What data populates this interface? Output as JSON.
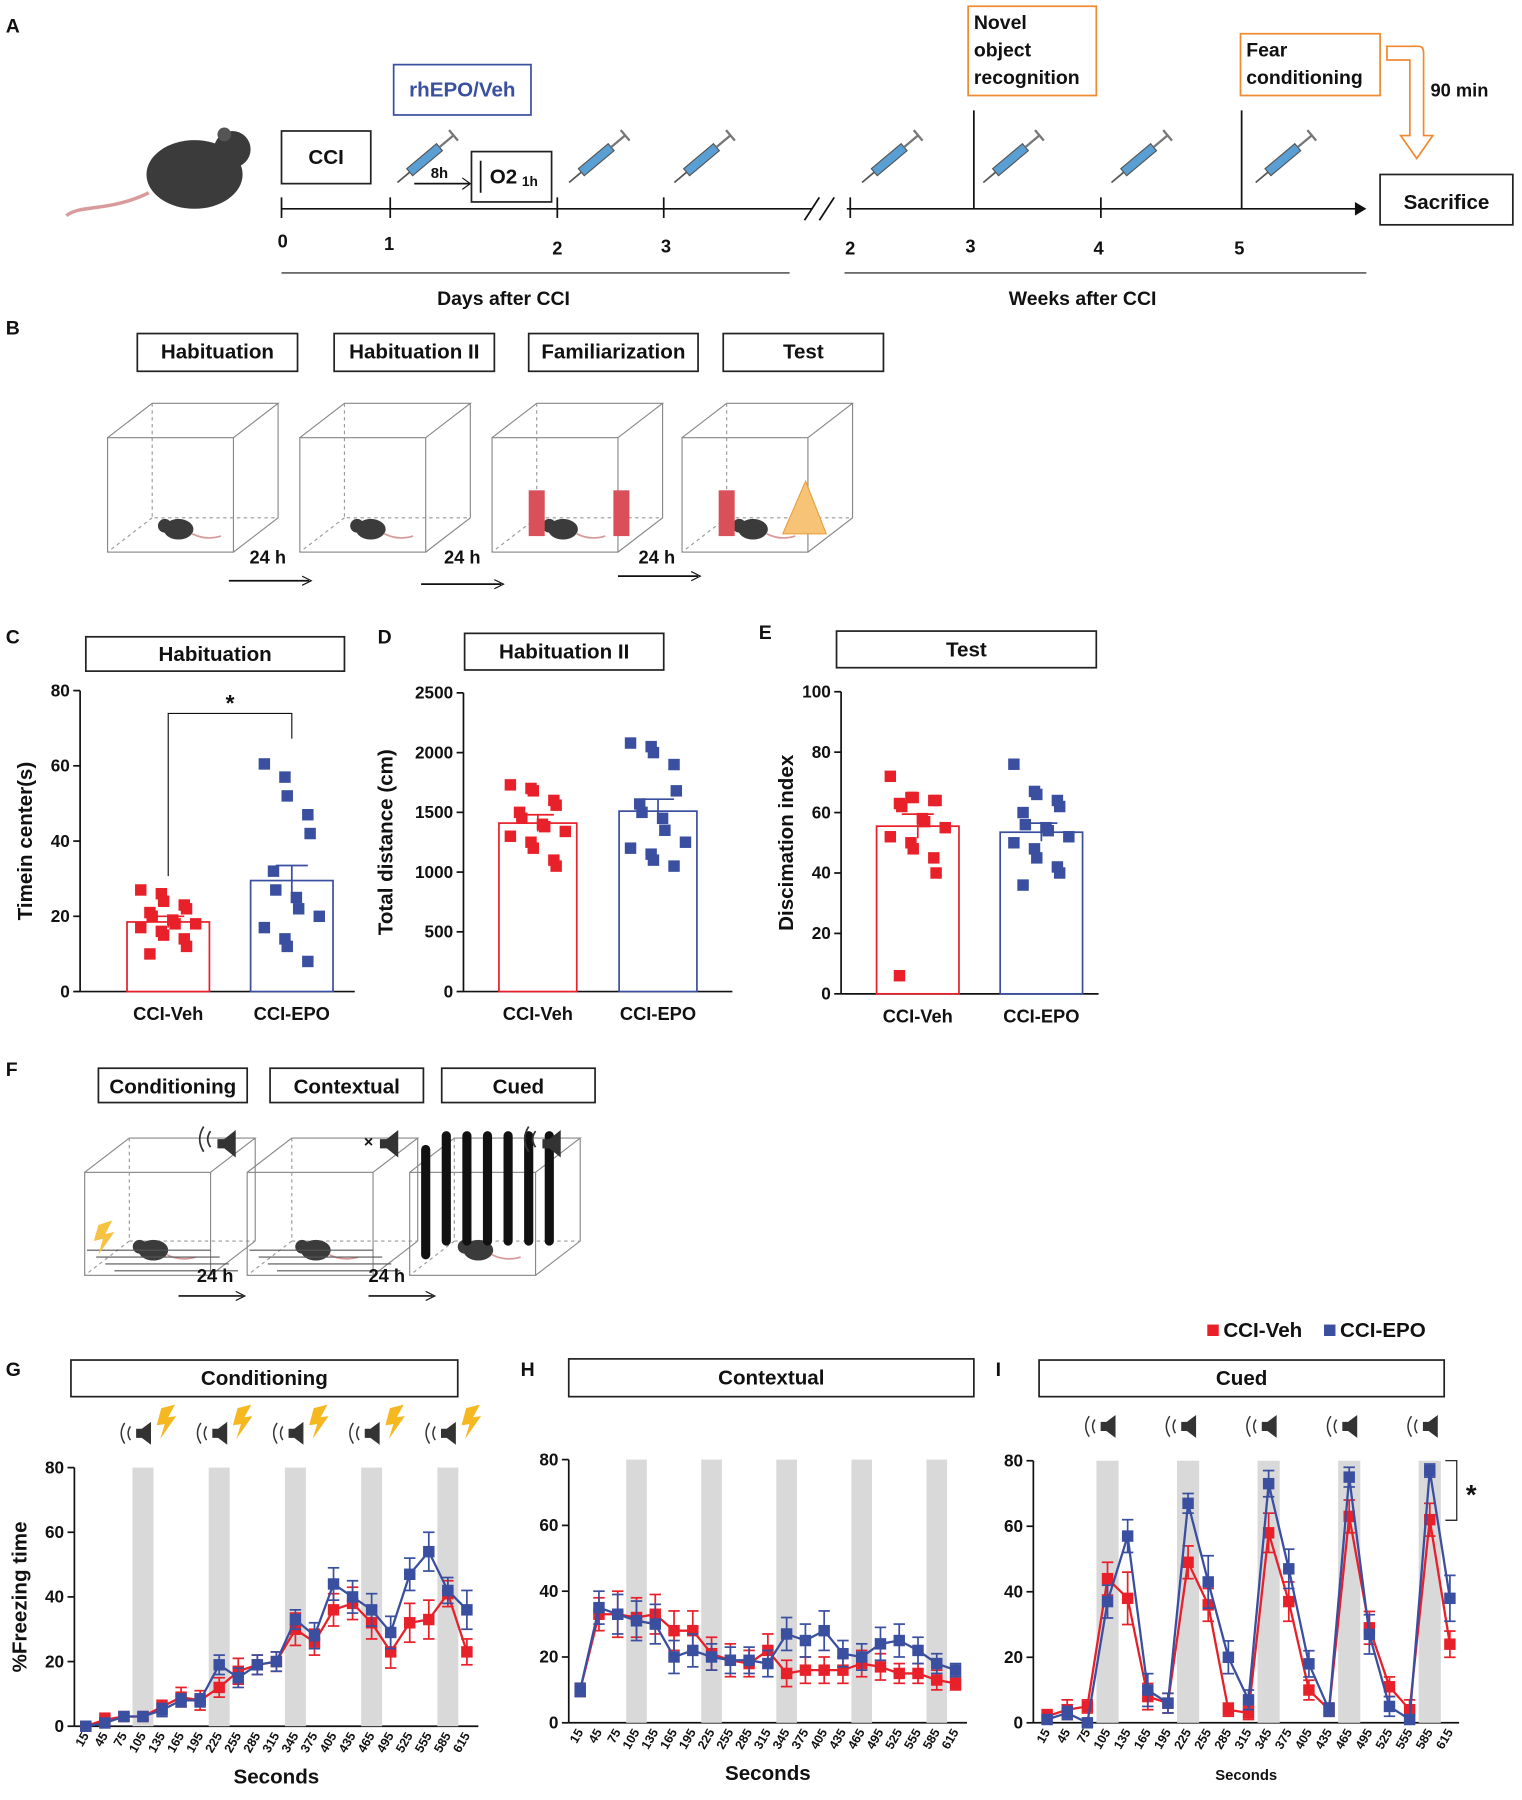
{
  "diagram": {
    "letters": [
      "A",
      "B",
      "C",
      "D",
      "E",
      "F",
      "G",
      "H",
      "I"
    ],
    "a": {
      "cci": "CCI",
      "treatment": "rhEPO/Veh",
      "interval": "8h",
      "o2": "O2",
      "o2_time": "1h",
      "nor": [
        "Novel",
        "object",
        "recognition"
      ],
      "fear": [
        "Fear",
        "conditioning"
      ],
      "delay": "90 min",
      "end": "Sacrifice",
      "day_ticks": [
        "0",
        "1",
        "2",
        "3"
      ],
      "week_ticks": [
        "2",
        "3",
        "4",
        "5"
      ],
      "days_label": "Days after CCI",
      "weeks_label": "Weeks after CCI"
    },
    "b": {
      "stages": [
        "Habituation",
        "Habituation II",
        "Familiarization",
        "Test"
      ],
      "gaps": [
        "24 h",
        "24 h",
        "24 h"
      ]
    },
    "f": {
      "stages": [
        "Conditioning",
        "Contextual",
        "Cued"
      ],
      "gaps": [
        "24 h",
        "24 h"
      ]
    }
  },
  "chart_data": [
    {
      "type": "bar",
      "title": "Habituation",
      "ylabel": "Timein center(s)",
      "categories": [
        "CCI-Veh",
        "CCI-EPO"
      ],
      "values": [
        18.5,
        29.5
      ],
      "errors": [
        1.5,
        4
      ],
      "colors": [
        "#e8202a",
        "#3a4fa0"
      ],
      "points": [
        [
          27,
          26,
          24,
          23,
          22,
          21,
          20,
          19,
          18,
          18,
          17,
          16,
          15,
          14,
          12,
          10
        ],
        [
          60.5,
          57,
          52,
          47,
          42,
          32,
          27,
          25,
          22,
          20,
          17,
          14,
          12,
          8
        ]
      ],
      "ylim": [
        0,
        80
      ],
      "yticks": [
        0,
        20,
        40,
        60,
        80
      ],
      "annotations": [
        "*"
      ]
    },
    {
      "type": "bar",
      "title": "Habituation II",
      "ylabel": "Total distance (cm)",
      "categories": [
        "CCI-Veh",
        "CCI-EPO"
      ],
      "values": [
        1410,
        1510
      ],
      "errors": [
        70,
        100
      ],
      "colors": [
        "#e8202a",
        "#3a4fa0"
      ],
      "points": [
        [
          1730,
          1700,
          1680,
          1600,
          1560,
          1500,
          1450,
          1400,
          1380,
          1340,
          1300,
          1250,
          1200,
          1100,
          1050
        ],
        [
          2080,
          2050,
          2000,
          1900,
          1680,
          1570,
          1500,
          1450,
          1350,
          1250,
          1200,
          1150,
          1100,
          1050
        ]
      ],
      "ylim": [
        0,
        2500
      ],
      "yticks": [
        0,
        500,
        1000,
        1500,
        2000,
        2500
      ]
    },
    {
      "type": "bar",
      "title": "Test",
      "ylabel": "Discimation index",
      "categories": [
        "CCI-Veh",
        "CCI-EPO"
      ],
      "values": [
        55.5,
        53.5
      ],
      "errors": [
        4,
        3
      ],
      "colors": [
        "#e8202a",
        "#3a4fa0"
      ],
      "points": [
        [
          72,
          65,
          65,
          64,
          64,
          63,
          62,
          58,
          57,
          55,
          52,
          50,
          48,
          45,
          40,
          6
        ],
        [
          76,
          67,
          66,
          64,
          62,
          60,
          56,
          55,
          54,
          52,
          50,
          48,
          45,
          42,
          40,
          36
        ]
      ],
      "ylim": [
        0,
        100
      ],
      "yticks": [
        0,
        20,
        40,
        60,
        80,
        100
      ]
    },
    {
      "type": "line",
      "title": "Conditioning",
      "xlabel": "Seconds",
      "ylabel": "%Freezing time",
      "categories": [
        "15",
        "45",
        "75",
        "105",
        "135",
        "165",
        "195",
        "225",
        "255",
        "285",
        "315",
        "345",
        "375",
        "405",
        "435",
        "465",
        "495",
        "525",
        "555",
        "585",
        "615"
      ],
      "series": [
        {
          "name": "CCI-Veh",
          "color": "#e8202a",
          "values": [
            0,
            2,
            3,
            3,
            6,
            9,
            8,
            12,
            17,
            19,
            20,
            30,
            26,
            36,
            38,
            32,
            23,
            32,
            33,
            41,
            23
          ],
          "errors": [
            1,
            2,
            1,
            1,
            2,
            3,
            3,
            3,
            4,
            3,
            3,
            5,
            4,
            5,
            5,
            5,
            5,
            6,
            6,
            4,
            4
          ]
        },
        {
          "name": "CCI-EPO",
          "color": "#3a4fa0",
          "values": [
            0,
            1,
            3,
            3,
            5,
            8,
            8,
            19,
            15,
            19,
            20,
            33,
            28,
            44,
            40,
            36,
            29,
            47,
            54,
            42,
            36
          ],
          "errors": [
            1,
            1,
            1,
            1,
            2,
            2,
            2,
            3,
            3,
            3,
            3,
            3,
            4,
            5,
            5,
            5,
            5,
            5,
            6,
            4,
            6
          ]
        }
      ],
      "ylim": [
        0,
        80
      ],
      "yticks": [
        0,
        20,
        40,
        60,
        80
      ]
    },
    {
      "type": "line",
      "title": "Contextual",
      "xlabel": "Seconds",
      "categories": [
        "15",
        "45",
        "75",
        "105",
        "135",
        "165",
        "195",
        "225",
        "255",
        "285",
        "315",
        "345",
        "375",
        "405",
        "435",
        "465",
        "495",
        "525",
        "555",
        "585",
        "615"
      ],
      "series": [
        {
          "name": "CCI-Veh",
          "color": "#e8202a",
          "values": [
            10,
            33,
            33,
            32,
            33,
            28,
            28,
            21,
            19,
            18,
            22,
            15,
            16,
            16,
            16,
            18,
            17,
            15,
            15,
            13,
            12
          ],
          "errors": [
            2,
            5,
            7,
            6,
            6,
            6,
            6,
            5,
            5,
            4,
            5,
            4,
            4,
            4,
            4,
            4,
            4,
            3,
            3,
            3,
            2
          ]
        },
        {
          "name": "CCI-EPO",
          "color": "#3a4fa0",
          "values": [
            10,
            35,
            33,
            31,
            30,
            20,
            22,
            20,
            19,
            19,
            18,
            27,
            25,
            28,
            21,
            20,
            24,
            25,
            22,
            18,
            16
          ],
          "errors": [
            2,
            5,
            6,
            6,
            6,
            5,
            5,
            4,
            4,
            4,
            4,
            5,
            5,
            6,
            4,
            4,
            5,
            5,
            4,
            3,
            2
          ]
        }
      ],
      "ylim": [
        0,
        80
      ],
      "yticks": [
        0,
        20,
        40,
        60,
        80
      ]
    },
    {
      "type": "line",
      "title": "Cued",
      "xlabel": "Seconds",
      "legend": "top-right",
      "categories": [
        "15",
        "45",
        "75",
        "105",
        "135",
        "165",
        "195",
        "225",
        "255",
        "285",
        "315",
        "345",
        "375",
        "405",
        "435",
        "465",
        "495",
        "525",
        "555",
        "585",
        "615"
      ],
      "series": [
        {
          "name": "CCI-Veh",
          "color": "#e8202a",
          "values": [
            2,
            4,
            5,
            44,
            38,
            8,
            6,
            49,
            36,
            4,
            3,
            58,
            37,
            10,
            4,
            63,
            29,
            11,
            4,
            62,
            24
          ],
          "errors": [
            2,
            3,
            2,
            5,
            8,
            4,
            3,
            5,
            5,
            2,
            2,
            6,
            6,
            3,
            2,
            5,
            5,
            3,
            3,
            5,
            4
          ]
        },
        {
          "name": "CCI-EPO",
          "color": "#3a4fa0",
          "values": [
            1,
            3,
            0,
            37,
            57,
            10,
            6,
            67,
            43,
            20,
            7,
            73,
            47,
            18,
            4,
            75,
            27,
            5,
            1,
            77,
            38
          ],
          "errors": [
            1,
            2,
            1,
            5,
            5,
            5,
            3,
            3,
            8,
            5,
            3,
            4,
            6,
            4,
            2,
            3,
            6,
            3,
            1,
            2,
            7
          ]
        }
      ],
      "ylim": [
        0,
        80
      ],
      "yticks": [
        0,
        20,
        40,
        60,
        80
      ],
      "annotations": [
        "*"
      ]
    }
  ]
}
